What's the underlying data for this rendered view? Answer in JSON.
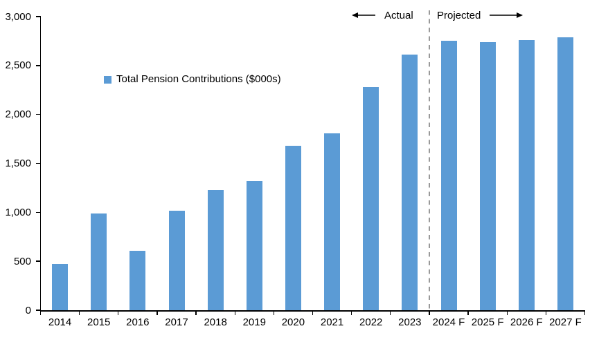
{
  "chart_data": {
    "type": "bar",
    "title": "",
    "legend_label": "Total Pension Contributions ($000s)",
    "categories": [
      "2014",
      "2015",
      "2016",
      "2017",
      "2018",
      "2019",
      "2020",
      "2021",
      "2022",
      "2023",
      "2024 F",
      "2025 F",
      "2026 F",
      "2027 F"
    ],
    "values": [
      470,
      990,
      610,
      1020,
      1230,
      1320,
      1680,
      1810,
      2280,
      2610,
      2750,
      2740,
      2760,
      2790
    ],
    "ylim": [
      0,
      3000
    ],
    "yticks": [
      0,
      500,
      1000,
      1500,
      2000,
      2500,
      3000
    ],
    "ytick_labels": [
      "0",
      "500",
      "1,000",
      "1,500",
      "2,000",
      "2,500",
      "3,000"
    ],
    "grid": false,
    "legend_position": "inside-upper-left",
    "annotations": {
      "actual_label": "Actual",
      "projected_label": "Projected"
    },
    "divider_after_category": "2023",
    "colors": {
      "bar": "#5B9BD5",
      "divider": "#999999",
      "axis": "#000000",
      "text": "#000000"
    }
  }
}
